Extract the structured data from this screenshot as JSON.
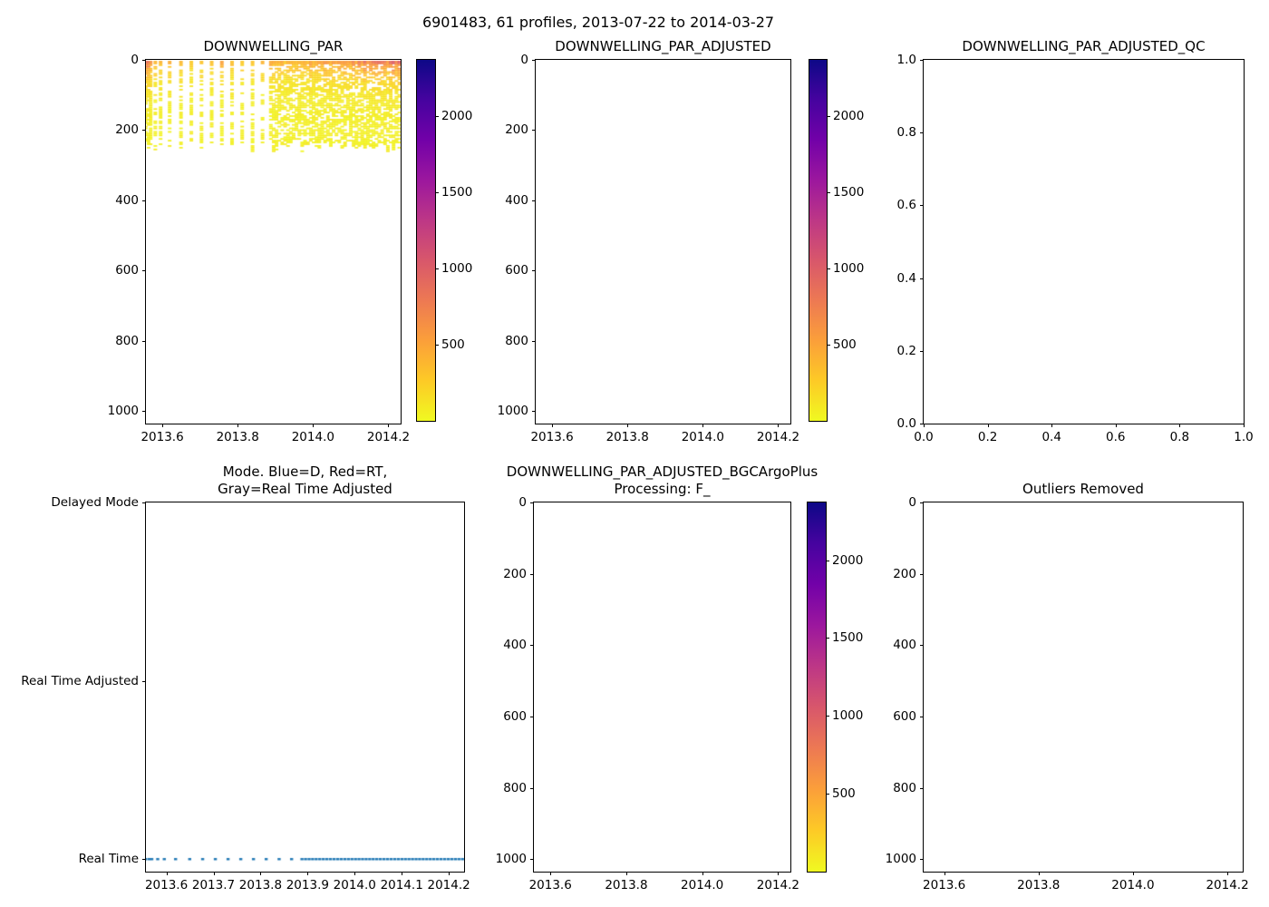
{
  "figure": {
    "suptitle": "6901483, 61 profiles, 2013-07-22 to 2014-03-27"
  },
  "palette": {
    "plasma": [
      "#0d0887",
      "#46039f",
      "#7201a8",
      "#9c179e",
      "#bd3786",
      "#d8576b",
      "#ed7953",
      "#fb9f3a",
      "#fdca26",
      "#f0f921"
    ],
    "profile_dot_color": "#1f77b4",
    "axis_color": "#000000",
    "background": "#ffffff"
  },
  "profiles": {
    "count": 61,
    "x_sparse": [
      2013.556,
      2013.5635,
      2013.569,
      2013.5815,
      2013.5955,
      2013.6195,
      2013.6495,
      2013.677,
      2013.704,
      2013.731,
      2013.758,
      2013.785,
      2013.812,
      2013.8395,
      2013.866
    ],
    "x_dense": [
      2013.888,
      2013.8956,
      2013.9032,
      2013.9107,
      2013.9183,
      2013.9259,
      2013.9335,
      2013.941,
      2013.9486,
      2013.9562,
      2013.9638,
      2013.9713,
      2013.9789,
      2013.9865,
      2013.9941,
      2014.0017,
      2014.0092,
      2014.0168,
      2014.0244,
      2014.032,
      2014.0395,
      2014.0471,
      2014.0547,
      2014.0623,
      2014.0698,
      2014.0774,
      2014.085,
      2014.0926,
      2014.1002,
      2014.1077,
      2014.1153,
      2014.1229,
      2014.1305,
      2014.138,
      2014.1456,
      2014.1532,
      2014.1608,
      2014.1683,
      2014.1759,
      2014.1835,
      2014.1911,
      2014.1987,
      2014.2062,
      2014.2138,
      2014.2214,
      2014.229
    ]
  },
  "chart_data": [
    {
      "id": "downwelling_par",
      "type": "scatter",
      "title": "DOWNWELLING_PAR",
      "xlim": [
        2013.5565,
        2014.2325
      ],
      "xticks": [
        2013.6,
        2013.8,
        2014.0,
        2014.2
      ],
      "xtick_labels": [
        "2013.6",
        "2013.8",
        "2014.0",
        "2014.2"
      ],
      "ylim": [
        0,
        1035
      ],
      "yticks": [
        0,
        200,
        400,
        600,
        800,
        1000
      ],
      "ytick_labels": [
        "0",
        "200",
        "400",
        "600",
        "800",
        "1000"
      ],
      "colorbar": {
        "colormap": "plasma_r",
        "vmin": 0,
        "vmax": 2370,
        "ticks": [
          2000,
          1500,
          1000,
          500
        ],
        "tick_labels": [
          "2000",
          "1500",
          "1000",
          "500"
        ]
      },
      "series": {
        "n_profiles": 61,
        "depth_range_m": [
          5,
          265
        ],
        "surface_par_approx": [
          350,
          1300
        ],
        "deep_par_approx": [
          0,
          150
        ],
        "pattern": "sparse dashed profile columns 2013.56-2013.87, dense speckled columns 2013.89-2014.23; values decay with depth (yellow), orange near surface, strongest at season edges"
      }
    },
    {
      "id": "downwelling_par_adjusted",
      "type": "scatter",
      "title": "DOWNWELLING_PAR_ADJUSTED",
      "xlim": [
        2013.5565,
        2014.2325
      ],
      "xticks": [
        2013.6,
        2013.8,
        2014.0,
        2014.2
      ],
      "xtick_labels": [
        "2013.6",
        "2013.8",
        "2014.0",
        "2014.2"
      ],
      "ylim": [
        0,
        1035
      ],
      "yticks": [
        0,
        200,
        400,
        600,
        800,
        1000
      ],
      "ytick_labels": [
        "0",
        "200",
        "400",
        "600",
        "800",
        "1000"
      ],
      "colorbar": {
        "colormap": "plasma_r",
        "vmin": 0,
        "vmax": 2370,
        "ticks": [
          2000,
          1500,
          1000,
          500
        ],
        "tick_labels": [
          "2000",
          "1500",
          "1000",
          "500"
        ]
      },
      "series": {
        "n_points": 0
      }
    },
    {
      "id": "downwelling_par_adjusted_qc",
      "type": "scatter",
      "title": "DOWNWELLING_PAR_ADJUSTED_QC",
      "xlim": [
        0,
        1
      ],
      "xticks": [
        0,
        0.2,
        0.4,
        0.6,
        0.8,
        1.0
      ],
      "xtick_labels": [
        "0.0",
        "0.2",
        "0.4",
        "0.6",
        "0.8",
        "1.0"
      ],
      "ylim": [
        1,
        0
      ],
      "yticks": [
        1.0,
        0.8,
        0.6,
        0.4,
        0.2,
        0.0
      ],
      "ytick_labels": [
        "1.0",
        "0.8",
        "0.6",
        "0.4",
        "0.2",
        "0.0"
      ],
      "series": {
        "n_points": 0
      }
    },
    {
      "id": "mode",
      "type": "scatter",
      "title": "Mode. Blue=D, Red=RT,\nGray=Real Time Adjusted",
      "xlim": [
        2013.5565,
        2014.2325
      ],
      "xticks": [
        2013.6,
        2013.7,
        2013.8,
        2013.9,
        2014.0,
        2014.1,
        2014.2
      ],
      "xtick_labels": [
        "2013.6",
        "2013.7",
        "2013.8",
        "2013.9",
        "2014.0",
        "2014.1",
        "2014.2"
      ],
      "ylim": [
        2.0,
        -0.07
      ],
      "yticks": [
        2,
        1,
        0
      ],
      "ytick_labels": [
        "Delayed Mode",
        "Real Time Adjusted",
        "Real Time"
      ],
      "series": {
        "mode_for_all_profiles": "Real Time",
        "y_value": 0,
        "n_points": 61,
        "marker_color": "#1f77b4"
      }
    },
    {
      "id": "bgc_argo_plus_processing",
      "type": "scatter",
      "title": "DOWNWELLING_PAR_ADJUSTED_BGCArgoPlus\nProcessing: F_",
      "xlim": [
        2013.5565,
        2014.2325
      ],
      "xticks": [
        2013.6,
        2013.8,
        2014.0,
        2014.2
      ],
      "xtick_labels": [
        "2013.6",
        "2013.8",
        "2014.0",
        "2014.2"
      ],
      "ylim": [
        0,
        1035
      ],
      "yticks": [
        0,
        200,
        400,
        600,
        800,
        1000
      ],
      "ytick_labels": [
        "0",
        "200",
        "400",
        "600",
        "800",
        "1000"
      ],
      "colorbar": {
        "colormap": "plasma_r",
        "vmin": 0,
        "vmax": 2370,
        "ticks": [
          2000,
          1500,
          1000,
          500
        ],
        "tick_labels": [
          "2000",
          "1500",
          "1000",
          "500"
        ]
      },
      "series": {
        "n_points": 0
      }
    },
    {
      "id": "outliers_removed",
      "type": "scatter",
      "title": "Outliers Removed",
      "xlim": [
        2013.5565,
        2014.2325
      ],
      "xticks": [
        2013.6,
        2013.8,
        2014.0,
        2014.2
      ],
      "xtick_labels": [
        "2013.6",
        "2013.8",
        "2014.0",
        "2014.2"
      ],
      "ylim": [
        0,
        1035
      ],
      "yticks": [
        0,
        200,
        400,
        600,
        800,
        1000
      ],
      "ytick_labels": [
        "0",
        "200",
        "400",
        "600",
        "800",
        "1000"
      ],
      "series": {
        "n_points": 0
      }
    }
  ]
}
